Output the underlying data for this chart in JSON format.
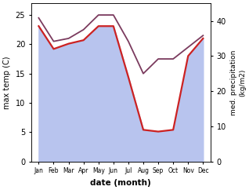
{
  "months": [
    "Jan",
    "Feb",
    "Mar",
    "Apr",
    "May",
    "Jun",
    "Jul",
    "Aug",
    "Sep",
    "Oct",
    "Nov",
    "Dec"
  ],
  "month_indices": [
    0,
    1,
    2,
    3,
    4,
    5,
    6,
    7,
    8,
    9,
    10,
    11
  ],
  "max_temp": [
    24.5,
    20.5,
    21.0,
    22.5,
    25.0,
    25.0,
    20.5,
    15.0,
    17.5,
    17.5,
    19.5,
    21.5
  ],
  "precipitation": [
    38.5,
    32.0,
    33.5,
    34.5,
    38.5,
    38.5,
    24.0,
    9.0,
    8.5,
    9.0,
    30.0,
    35.0
  ],
  "temp_fill_color": "#b8c4ee",
  "temp_line_color": "#7b3b5e",
  "precip_line_color": "#cc2222",
  "xlabel": "date (month)",
  "ylabel_left": "max temp (C)",
  "ylabel_right": "med. precipitation\n(kg/m2)",
  "ylim_left": [
    0,
    27
  ],
  "ylim_right": [
    0,
    45
  ],
  "yticks_left": [
    0,
    5,
    10,
    15,
    20,
    25
  ],
  "yticks_right": [
    0,
    10,
    20,
    30,
    40
  ],
  "bg_color": "#ffffff",
  "fig_bg_color": "#ffffff"
}
